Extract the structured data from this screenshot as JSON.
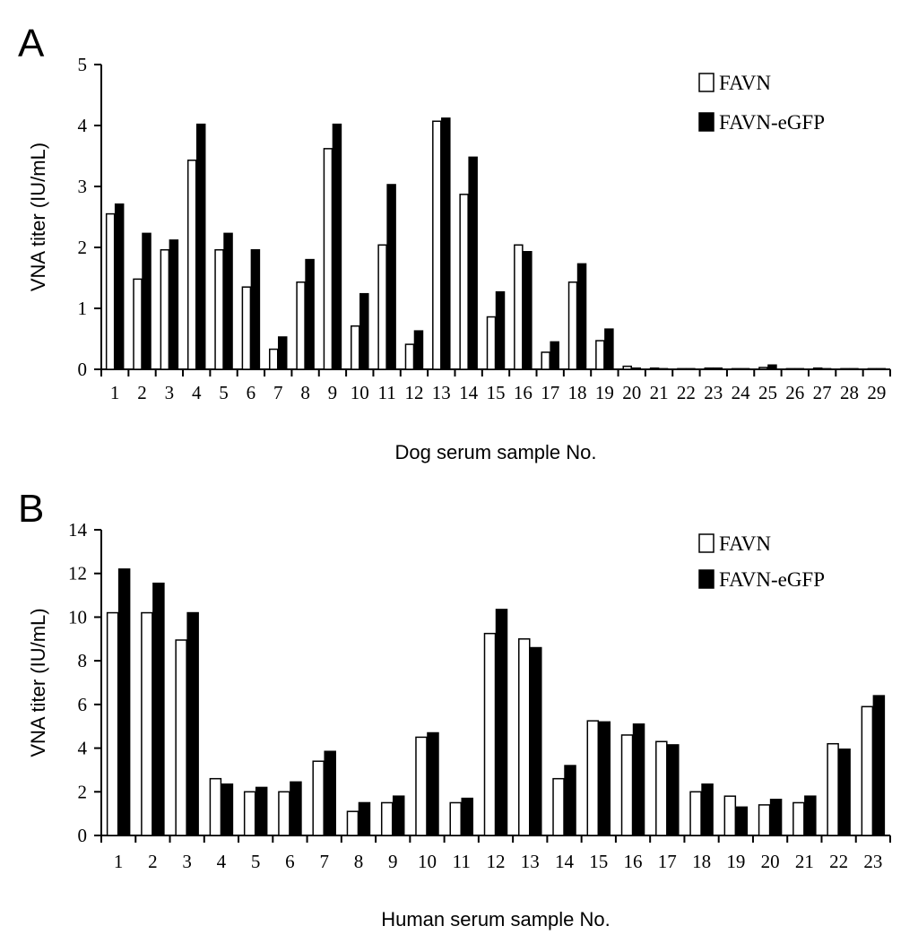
{
  "chart_data": [
    {
      "type": "bar",
      "panel": "A",
      "xlabel": "Dog serum sample No.",
      "ylabel": "VNA titer (IU/mL)",
      "ylim": [
        0,
        5
      ],
      "yticks": [
        "0",
        "1",
        "2",
        "3",
        "4",
        "5"
      ],
      "grid": false,
      "legend_position": "top-right",
      "categories": [
        "1",
        "2",
        "3",
        "4",
        "5",
        "6",
        "7",
        "8",
        "9",
        "10",
        "11",
        "12",
        "13",
        "14",
        "15",
        "16",
        "17",
        "18",
        "19",
        "20",
        "21",
        "22",
        "23",
        "24",
        "25",
        "26",
        "27",
        "28",
        "29"
      ],
      "series": [
        {
          "name": "FAVN",
          "color": "#ffffff",
          "values": [
            2.55,
            1.48,
            1.96,
            3.43,
            1.96,
            1.35,
            0.33,
            1.43,
            3.62,
            0.71,
            2.04,
            0.41,
            4.07,
            2.87,
            0.86,
            2.04,
            0.28,
            1.43,
            0.47,
            0.05,
            0.02,
            0.01,
            0.02,
            0.01,
            0.03,
            0.01,
            0.02,
            0.01,
            0.01
          ]
        },
        {
          "name": "FAVN-eGFP",
          "color": "#000000",
          "values": [
            2.71,
            2.23,
            2.12,
            4.02,
            2.23,
            1.96,
            0.53,
            1.8,
            4.02,
            1.24,
            3.03,
            0.63,
            4.12,
            3.48,
            1.27,
            1.93,
            0.45,
            1.73,
            0.66,
            0.02,
            0.01,
            0.01,
            0.02,
            0.01,
            0.07,
            0.01,
            0.01,
            0.01,
            0.01
          ]
        }
      ]
    },
    {
      "type": "bar",
      "panel": "B",
      "xlabel": "Human serum sample No.",
      "ylabel": "VNA titer (IU/mL)",
      "ylim": [
        0,
        14
      ],
      "yticks": [
        "0",
        "2",
        "4",
        "6",
        "8",
        "10",
        "12",
        "14"
      ],
      "grid": false,
      "legend_position": "top-right",
      "categories": [
        "1",
        "2",
        "3",
        "4",
        "5",
        "6",
        "7",
        "8",
        "9",
        "10",
        "11",
        "12",
        "13",
        "14",
        "15",
        "16",
        "17",
        "18",
        "19",
        "20",
        "21",
        "22",
        "23"
      ],
      "series": [
        {
          "name": "FAVN",
          "color": "#ffffff",
          "values": [
            10.2,
            10.2,
            8.95,
            2.6,
            2.0,
            2.0,
            3.4,
            1.1,
            1.5,
            4.5,
            1.5,
            9.25,
            9.0,
            2.6,
            5.25,
            4.6,
            4.3,
            2.0,
            1.8,
            1.4,
            1.5,
            4.2,
            5.9
          ]
        },
        {
          "name": "FAVN-eGFP",
          "color": "#000000",
          "values": [
            12.2,
            11.55,
            10.2,
            2.35,
            2.2,
            2.45,
            3.85,
            1.5,
            1.8,
            4.7,
            1.7,
            10.35,
            8.6,
            3.2,
            5.2,
            5.1,
            4.15,
            2.35,
            1.3,
            1.65,
            1.8,
            3.95,
            6.4
          ]
        }
      ]
    }
  ]
}
